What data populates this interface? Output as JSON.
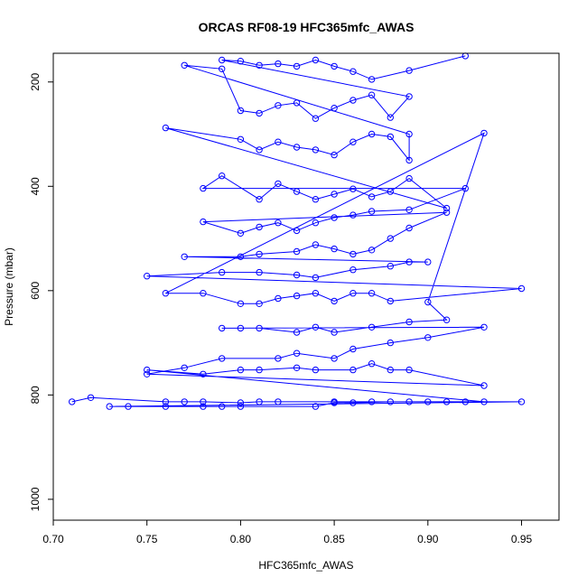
{
  "chart_data": {
    "type": "scatter",
    "title": "ORCAS RF08-19 HFC365mfc_AWAS",
    "xlabel": "HFC365mfc_AWAS",
    "ylabel": "Pressure (mbar)",
    "xlim": [
      0.7,
      0.97
    ],
    "ylim": [
      1040,
      145
    ],
    "y_reversed": true,
    "x_ticks": [
      0.7,
      0.75,
      0.8,
      0.85,
      0.9,
      0.95
    ],
    "x_tick_labels": [
      "0.70",
      "0.75",
      "0.80",
      "0.85",
      "0.90",
      "0.95"
    ],
    "y_ticks": [
      200,
      400,
      600,
      800,
      1000
    ],
    "y_tick_labels": [
      "200",
      "400",
      "600",
      "800",
      "1000"
    ],
    "grid": false,
    "marker": "open-circle",
    "line": true,
    "color": "#0000ff",
    "series": [
      {
        "points": [
          [
            0.71,
            813
          ],
          [
            0.72,
            805
          ],
          [
            0.76,
            813
          ],
          [
            0.77,
            813
          ],
          [
            0.78,
            813
          ],
          [
            0.8,
            815
          ],
          [
            0.81,
            813
          ],
          [
            0.82,
            813
          ],
          [
            0.85,
            813
          ],
          [
            0.87,
            813
          ],
          [
            0.89,
            813
          ],
          [
            0.91,
            813
          ],
          [
            0.95,
            813
          ],
          [
            0.73,
            822
          ],
          [
            0.74,
            822
          ],
          [
            0.76,
            822
          ],
          [
            0.78,
            822
          ],
          [
            0.79,
            822
          ],
          [
            0.8,
            822
          ],
          [
            0.84,
            822
          ],
          [
            0.85,
            815
          ],
          [
            0.86,
            815
          ],
          [
            0.88,
            813
          ],
          [
            0.9,
            813
          ],
          [
            0.92,
            813
          ],
          [
            0.93,
            813
          ],
          [
            0.75,
            752
          ],
          [
            0.78,
            760
          ],
          [
            0.8,
            752
          ],
          [
            0.81,
            752
          ],
          [
            0.83,
            748
          ],
          [
            0.84,
            752
          ],
          [
            0.86,
            752
          ],
          [
            0.87,
            740
          ],
          [
            0.88,
            752
          ],
          [
            0.89,
            752
          ],
          [
            0.93,
            782
          ],
          [
            0.75,
            760
          ],
          [
            0.77,
            748
          ],
          [
            0.79,
            730
          ],
          [
            0.82,
            730
          ],
          [
            0.83,
            720
          ],
          [
            0.85,
            730
          ],
          [
            0.86,
            712
          ],
          [
            0.88,
            700
          ],
          [
            0.9,
            690
          ],
          [
            0.93,
            670
          ],
          [
            0.79,
            672
          ],
          [
            0.8,
            672
          ],
          [
            0.81,
            672
          ],
          [
            0.83,
            680
          ],
          [
            0.84,
            670
          ],
          [
            0.85,
            680
          ],
          [
            0.87,
            670
          ],
          [
            0.89,
            660
          ],
          [
            0.91,
            656
          ],
          [
            0.9,
            622
          ],
          [
            0.93,
            298
          ],
          [
            0.76,
            605
          ],
          [
            0.78,
            605
          ],
          [
            0.8,
            625
          ],
          [
            0.81,
            625
          ],
          [
            0.82,
            615
          ],
          [
            0.83,
            610
          ],
          [
            0.84,
            605
          ],
          [
            0.85,
            620
          ],
          [
            0.86,
            605
          ],
          [
            0.87,
            605
          ],
          [
            0.88,
            620
          ],
          [
            0.95,
            596
          ],
          [
            0.75,
            572
          ],
          [
            0.79,
            565
          ],
          [
            0.81,
            565
          ],
          [
            0.83,
            570
          ],
          [
            0.84,
            575
          ],
          [
            0.86,
            560
          ],
          [
            0.88,
            553
          ],
          [
            0.89,
            545
          ],
          [
            0.9,
            545
          ],
          [
            0.77,
            535
          ],
          [
            0.8,
            535
          ],
          [
            0.81,
            530
          ],
          [
            0.83,
            525
          ],
          [
            0.84,
            512
          ],
          [
            0.85,
            520
          ],
          [
            0.86,
            530
          ],
          [
            0.87,
            522
          ],
          [
            0.88,
            500
          ],
          [
            0.89,
            480
          ],
          [
            0.91,
            450
          ],
          [
            0.78,
            468
          ],
          [
            0.8,
            490
          ],
          [
            0.81,
            478
          ],
          [
            0.82,
            470
          ],
          [
            0.83,
            485
          ],
          [
            0.84,
            470
          ],
          [
            0.85,
            460
          ],
          [
            0.86,
            455
          ],
          [
            0.87,
            448
          ],
          [
            0.89,
            445
          ],
          [
            0.92,
            404
          ],
          [
            0.78,
            404
          ],
          [
            0.79,
            380
          ],
          [
            0.81,
            425
          ],
          [
            0.82,
            395
          ],
          [
            0.83,
            410
          ],
          [
            0.84,
            425
          ],
          [
            0.85,
            415
          ],
          [
            0.86,
            405
          ],
          [
            0.87,
            420
          ],
          [
            0.88,
            410
          ],
          [
            0.89,
            385
          ],
          [
            0.91,
            442
          ],
          [
            0.76,
            288
          ],
          [
            0.8,
            310
          ],
          [
            0.81,
            330
          ],
          [
            0.82,
            315
          ],
          [
            0.83,
            325
          ],
          [
            0.84,
            330
          ],
          [
            0.85,
            340
          ],
          [
            0.86,
            315
          ],
          [
            0.87,
            300
          ],
          [
            0.88,
            305
          ],
          [
            0.89,
            350
          ],
          [
            0.89,
            300
          ],
          [
            0.77,
            168
          ],
          [
            0.79,
            175
          ],
          [
            0.8,
            255
          ],
          [
            0.81,
            260
          ],
          [
            0.82,
            245
          ],
          [
            0.83,
            240
          ],
          [
            0.84,
            270
          ],
          [
            0.85,
            250
          ],
          [
            0.86,
            235
          ],
          [
            0.87,
            225
          ],
          [
            0.88,
            268
          ],
          [
            0.89,
            228
          ],
          [
            0.79,
            158
          ],
          [
            0.8,
            160
          ],
          [
            0.81,
            168
          ],
          [
            0.82,
            165
          ],
          [
            0.83,
            170
          ],
          [
            0.84,
            158
          ],
          [
            0.85,
            170
          ],
          [
            0.86,
            180
          ],
          [
            0.87,
            195
          ],
          [
            0.89,
            178
          ],
          [
            0.92,
            150
          ]
        ]
      }
    ]
  }
}
